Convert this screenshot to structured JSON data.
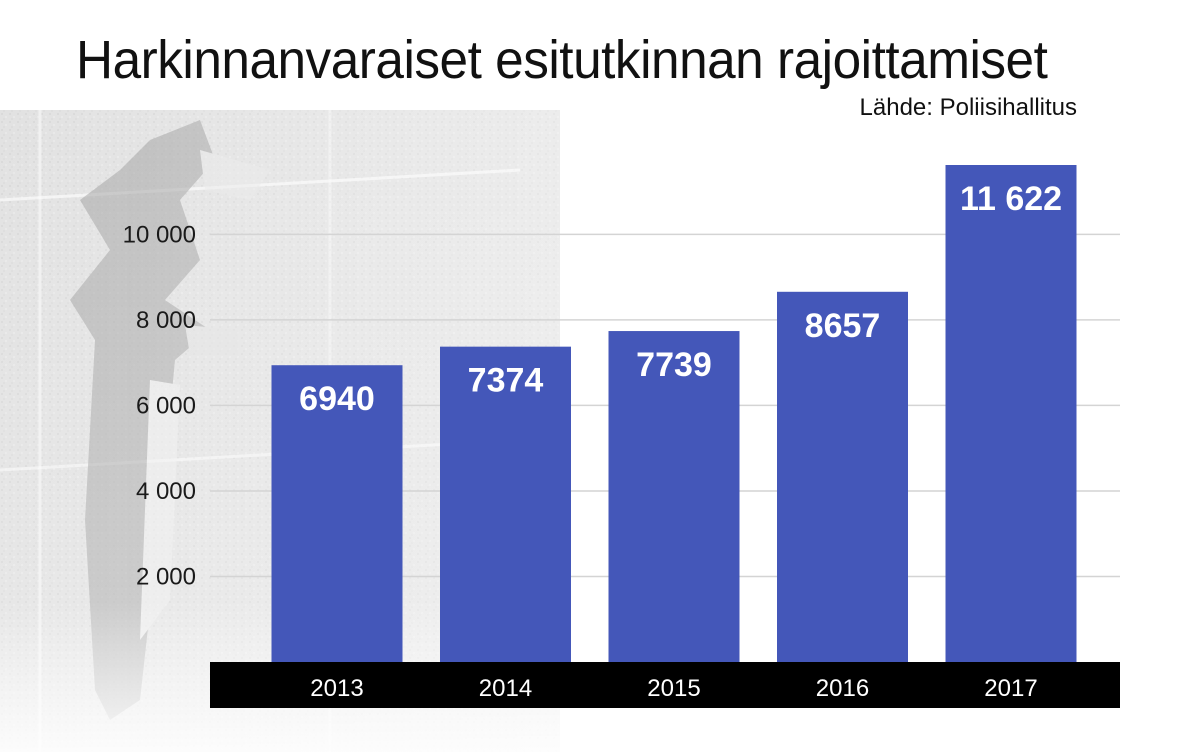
{
  "chart_data": {
    "type": "bar",
    "title": "Harkinnanvaraiset esitutkinnan rajoittamiset",
    "source": "Lähde: Poliisihallitus",
    "categories": [
      "2013",
      "2014",
      "2015",
      "2016",
      "2017"
    ],
    "values": [
      6940,
      7374,
      7739,
      8657,
      11622
    ],
    "value_labels": [
      "6940",
      "7374",
      "7739",
      "8657",
      "11 622"
    ],
    "xlabel": "",
    "ylabel": "",
    "ylim": [
      0,
      11622
    ],
    "yticks": [
      2000,
      4000,
      6000,
      8000,
      10000
    ],
    "ytick_labels": [
      "2 000",
      "4 000",
      "6 000",
      "8 000",
      "10 000"
    ],
    "grid": true,
    "legend": "none",
    "bar_color": "#4457b9",
    "axis_band_color": "#000000",
    "gridline_color": "#d4d4d4"
  }
}
